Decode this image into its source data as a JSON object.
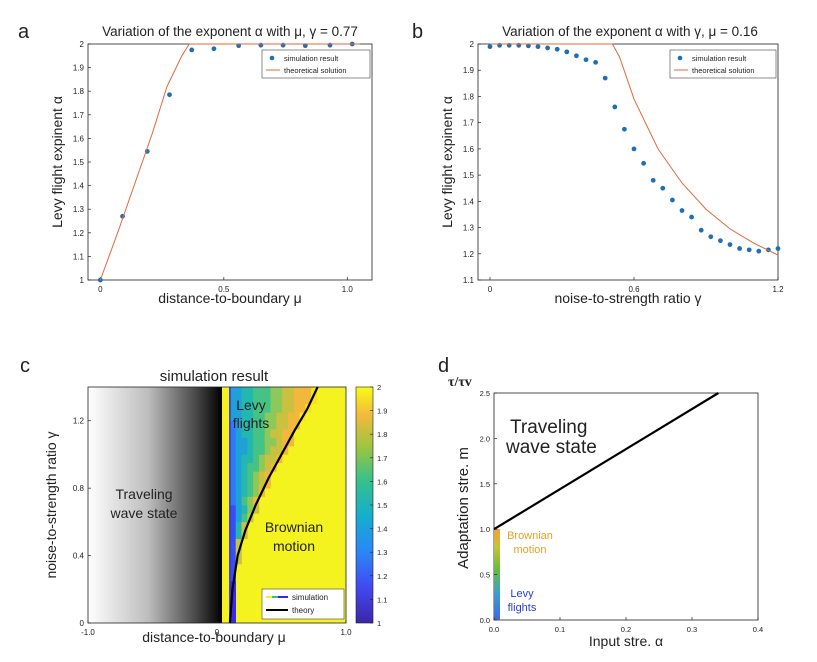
{
  "colors": {
    "marker": "#1f6fb4",
    "theory": "#e06a3b",
    "theory_bw": "#000000",
    "grad_orange": "#f1a23a",
    "grad_green": "#66bb3c",
    "grad_blue": "#3f66e0",
    "brownian_text": "#e8a020",
    "levy_text": "#2a3cd6"
  },
  "chart_data": [
    {
      "panel": "a",
      "type": "scatter",
      "title": "Variation of the exponent α with μ, γ = 0.77",
      "xlabel": "distance-to-boundary μ",
      "ylabel": "Levy flight expinent α",
      "xlim": [
        -0.05,
        1.1
      ],
      "ylim": [
        1,
        2
      ],
      "xticks": [
        0,
        0.5,
        1
      ],
      "xtick_labels": [
        "0",
        "0.5",
        "1.0"
      ],
      "yticks": [
        1,
        1.1,
        1.2,
        1.3,
        1.4,
        1.5,
        1.6,
        1.7,
        1.8,
        1.9,
        2
      ],
      "ytick_labels": [
        "1",
        "1.1",
        "1.2",
        "1.3",
        "1.4",
        "1.5",
        "1.6",
        "1.7",
        "1.8",
        "1.9",
        "2"
      ],
      "legend": [
        "simulation result",
        "theoretical solution"
      ],
      "legend_position": "top-right",
      "grid": false,
      "series": [
        {
          "name": "simulation result",
          "kind": "points",
          "x": [
            0,
            0.09,
            0.19,
            0.28,
            0.37,
            0.46,
            0.56,
            0.65,
            0.74,
            0.83,
            0.93,
            1.02
          ],
          "y": [
            1.0,
            1.27,
            1.545,
            1.785,
            1.975,
            1.98,
            1.993,
            1.995,
            1.995,
            1.993,
            1.995,
            2.0
          ]
        },
        {
          "name": "theoretical solution",
          "kind": "line",
          "x": [
            0,
            0.07,
            0.14,
            0.21,
            0.27,
            0.33,
            0.36,
            0.4,
            0.5,
            0.75,
            1.05
          ],
          "y": [
            1.0,
            1.2,
            1.41,
            1.62,
            1.82,
            1.95,
            2.0,
            2.0,
            2.0,
            2.0,
            2.0
          ]
        }
      ]
    },
    {
      "panel": "b",
      "type": "scatter",
      "title": "Variation of the exponent α with γ, μ = 0.16",
      "xlabel": "noise-to-strength ratio γ",
      "ylabel": "Levy flight expinent α",
      "xlim": [
        -0.05,
        1.2
      ],
      "ylim": [
        1.1,
        2
      ],
      "xticks": [
        0,
        0.6,
        1.2
      ],
      "xtick_labels": [
        "0",
        "0.6",
        "1.2"
      ],
      "yticks": [
        1.1,
        1.2,
        1.3,
        1.4,
        1.5,
        1.6,
        1.7,
        1.8,
        1.9,
        2
      ],
      "ytick_labels": [
        "1.1",
        "1.2",
        "1.3",
        "1.4",
        "1.5",
        "1.6",
        "1.7",
        "1.8",
        "1.9",
        "2"
      ],
      "legend": [
        "simulation result",
        "theoretical solution"
      ],
      "legend_position": "top-right",
      "grid": false,
      "series": [
        {
          "name": "simulation result",
          "kind": "points",
          "x": [
            0,
            0.04,
            0.08,
            0.12,
            0.16,
            0.2,
            0.24,
            0.28,
            0.32,
            0.36,
            0.4,
            0.44,
            0.48,
            0.52,
            0.56,
            0.6,
            0.64,
            0.68,
            0.72,
            0.76,
            0.8,
            0.84,
            0.88,
            0.92,
            0.96,
            1.0,
            1.04,
            1.08,
            1.12,
            1.16,
            1.2
          ],
          "y": [
            1.99,
            1.995,
            1.995,
            1.995,
            1.993,
            1.99,
            1.985,
            1.98,
            1.97,
            1.955,
            1.94,
            1.93,
            1.87,
            1.76,
            1.675,
            1.6,
            1.545,
            1.48,
            1.45,
            1.405,
            1.365,
            1.34,
            1.29,
            1.265,
            1.25,
            1.235,
            1.22,
            1.215,
            1.21,
            1.215,
            1.22
          ]
        },
        {
          "name": "theoretical solution",
          "kind": "line",
          "x": [
            0,
            0.2,
            0.4,
            0.51,
            0.54,
            0.6,
            0.7,
            0.8,
            0.9,
            1.0,
            1.1,
            1.2
          ],
          "y": [
            2.0,
            2.0,
            2.0,
            2.0,
            1.95,
            1.79,
            1.6,
            1.47,
            1.37,
            1.295,
            1.24,
            1.195
          ]
        }
      ]
    },
    {
      "panel": "c",
      "type": "heatmap",
      "title": "simulation result",
      "xlabel": "distance-to-boundary μ",
      "ylabel": "noise-to-strength ratio γ",
      "xlim": [
        -1.0,
        1.0
      ],
      "ylim": [
        0,
        1.4
      ],
      "xticks": [
        -1.0,
        0,
        1.0
      ],
      "xtick_labels": [
        "-1.0",
        "0",
        "1.0"
      ],
      "yticks": [
        0,
        0.4,
        0.8,
        1.2
      ],
      "ytick_labels": [
        "0",
        "0.4",
        "0.8",
        "1.2"
      ],
      "colorbar": {
        "min": 1,
        "max": 2,
        "ticks": [
          1,
          1.1,
          1.2,
          1.3,
          1.4,
          1.5,
          1.6,
          1.7,
          1.8,
          1.9,
          2
        ],
        "tick_labels": [
          "1",
          "1.1",
          "1.2",
          "1.3",
          "1.4",
          "1.5",
          "1.6",
          "1.7",
          "1.8",
          "1.9",
          "2"
        ]
      },
      "regions": [
        "Traveling wave state",
        "Levy flights",
        "Brownian motion"
      ],
      "legend": [
        "simulation",
        "theory"
      ],
      "legend_position": "bottom-right",
      "boundary_line": {
        "x": [
          0.1,
          0.12,
          0.16,
          0.22,
          0.3,
          0.4,
          0.5,
          0.6,
          0.7,
          0.78
        ],
        "y": [
          0.0,
          0.2,
          0.4,
          0.55,
          0.7,
          0.86,
          1.0,
          1.14,
          1.27,
          1.4
        ]
      }
    },
    {
      "panel": "d",
      "type": "line",
      "title": "τ/τv",
      "xlabel": "Input stre. α",
      "ylabel": "Adaptation stre. m",
      "xlim": [
        0,
        0.4
      ],
      "ylim": [
        0,
        2.5
      ],
      "xticks": [
        0,
        0.1,
        0.2,
        0.3,
        0.4
      ],
      "xtick_labels": [
        "0.0",
        "0.1",
        "0.2",
        "0.3",
        "0.4"
      ],
      "yticks": [
        0,
        0.5,
        1.0,
        1.5,
        2.0,
        2.5
      ],
      "ytick_labels": [
        "0.0",
        "0.5",
        "1.0",
        "1.5",
        "2.0",
        "2.5"
      ],
      "regions": [
        "Traveling wave state",
        "Brownian motion",
        "Levy flights"
      ],
      "grid": false,
      "series": [
        {
          "kind": "line",
          "x": [
            0,
            0.34
          ],
          "y": [
            1.0,
            2.5
          ]
        }
      ]
    }
  ],
  "panel_labels": {
    "a": "a",
    "b": "b",
    "c": "c",
    "d": "d"
  },
  "annotations": {
    "c_traveling": [
      "Traveling",
      "wave state"
    ],
    "c_levy": [
      "Levy",
      "flights"
    ],
    "c_brownian": [
      "Brownian",
      "motion"
    ],
    "d_traveling": [
      "Traveling",
      "wave state"
    ],
    "d_brownian": [
      "Brownian",
      "motion"
    ],
    "d_levy": [
      "Levy",
      "flights"
    ]
  }
}
